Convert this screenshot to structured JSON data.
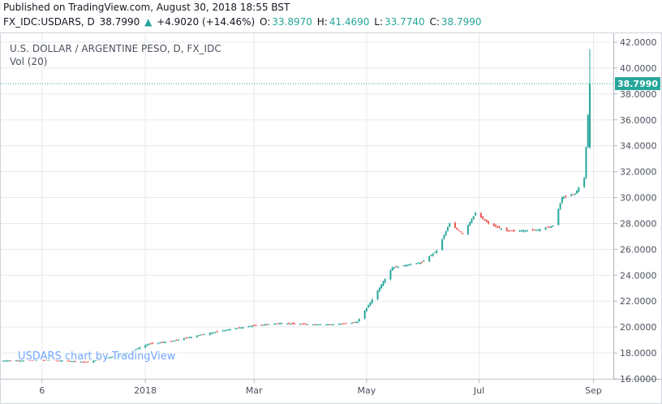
{
  "header": {
    "published": "Published on TradingView.com, August 30, 2018 18:55 BST",
    "symbol": "FX_IDC:USDARS, D",
    "last": "38.7990",
    "change_arrow": "▲",
    "change": "+4.9020 (+14.46%)",
    "o_label": "O:",
    "o_value": "33.8970",
    "h_label": "H:",
    "h_value": "41.4690",
    "l_label": "L:",
    "l_value": "33.7740",
    "c_label": "C:",
    "c_value": "38.7990"
  },
  "legend": {
    "title": "U.S. DOLLAR / ARGENTINE PESO, D, FX_IDC",
    "volume": "Vol (20)"
  },
  "watermark": "USDARS chart by TradingView",
  "price_tag": "38.7990",
  "colors": {
    "up": "#26a69a",
    "down": "#ef5350",
    "grid": "#e6e9ee",
    "axis_text": "#4c525e",
    "last_price": "#26a69a"
  },
  "chart_data": {
    "type": "candlestick",
    "title": "U.S. DOLLAR / ARGENTINE PESO, D, FX_IDC",
    "ylim": [
      16,
      42.5
    ],
    "y_ticks": [
      "16.0000",
      "18.0000",
      "20.0000",
      "22.0000",
      "24.0000",
      "26.0000",
      "28.0000",
      "30.0000",
      "32.0000",
      "34.0000",
      "36.0000",
      "38.0000",
      "40.0000",
      "42.0000"
    ],
    "x_ticks": [
      {
        "label": "6",
        "date": "2017-11-06"
      },
      {
        "label": "2018",
        "date": "2018-01-01"
      },
      {
        "label": "Mar",
        "date": "2018-03-01"
      },
      {
        "label": "May",
        "date": "2018-05-01"
      },
      {
        "label": "Jul",
        "date": "2018-07-01"
      },
      {
        "label": "Sep",
        "date": "2018-09-01"
      }
    ],
    "x_range": [
      "2017-10-16",
      "2018-09-10"
    ],
    "last_price": 38.799,
    "grid": true,
    "series": [
      {
        "date": "2017-10-16",
        "close": 17.4
      },
      {
        "date": "2017-11-10",
        "close": 17.45
      },
      {
        "date": "2017-12-01",
        "close": 17.3
      },
      {
        "date": "2017-12-20",
        "close": 17.9
      },
      {
        "date": "2018-01-03",
        "close": 18.7
      },
      {
        "date": "2018-01-15",
        "close": 18.9
      },
      {
        "date": "2018-01-31",
        "close": 19.4
      },
      {
        "date": "2018-02-15",
        "close": 19.8
      },
      {
        "date": "2018-02-28",
        "close": 20.1
      },
      {
        "date": "2018-03-15",
        "close": 20.3
      },
      {
        "date": "2018-04-01",
        "close": 20.2
      },
      {
        "date": "2018-04-15",
        "close": 20.2
      },
      {
        "date": "2018-04-26",
        "close": 20.4
      },
      {
        "date": "2018-05-03",
        "close": 21.9
      },
      {
        "date": "2018-05-10",
        "close": 23.5
      },
      {
        "date": "2018-05-15",
        "close": 24.6
      },
      {
        "date": "2018-05-31",
        "close": 25.0
      },
      {
        "date": "2018-06-08",
        "close": 25.9
      },
      {
        "date": "2018-06-15",
        "close": 28.0
      },
      {
        "date": "2018-06-22",
        "close": 27.2
      },
      {
        "date": "2018-06-29",
        "close": 28.8
      },
      {
        "date": "2018-07-06",
        "close": 28.0
      },
      {
        "date": "2018-07-16",
        "close": 27.4
      },
      {
        "date": "2018-08-01",
        "close": 27.5
      },
      {
        "date": "2018-08-10",
        "close": 27.8
      },
      {
        "date": "2018-08-15",
        "close": 30.0
      },
      {
        "date": "2018-08-22",
        "close": 30.3
      },
      {
        "date": "2018-08-27",
        "close": 31.5
      },
      {
        "date": "2018-08-28",
        "close": 33.9
      },
      {
        "date": "2018-08-30",
        "close": 38.8
      }
    ]
  }
}
